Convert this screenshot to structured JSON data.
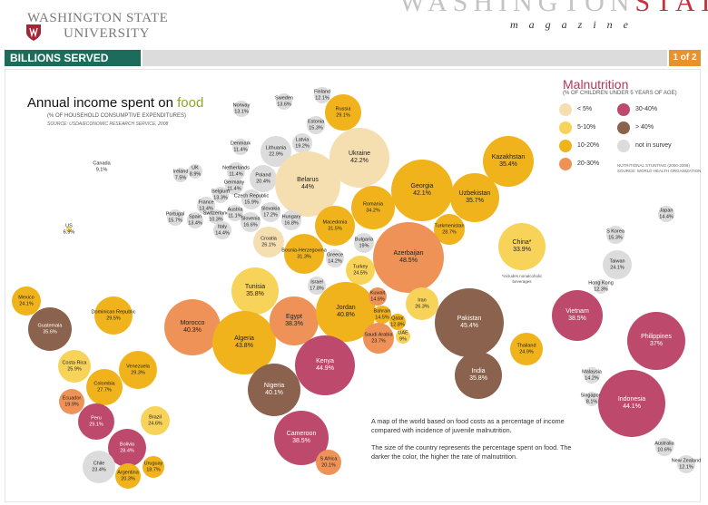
{
  "header": {
    "logo_line1": "WASHINGTON STATE",
    "logo_line2": "UNIVERSITY",
    "magazine_title_a": "WASHINGTON",
    "magazine_title_b": "STATE",
    "magazine_sub": "magazine",
    "section_title": "BILLIONS SERVED",
    "page_indicator": "1 of 2"
  },
  "chart_title": {
    "pre": "Annual income spent on ",
    "accent": "food",
    "subtitle": "(% OF HOUSEHOLD CONSUMPTIVE EXPENDITURES)",
    "source": "SOURCE: USDA/ECONOMIC RESEARCH SERVICE, 2008"
  },
  "legend": {
    "title": "Malnutrition",
    "subtitle": "(% OF CHILDREN UNDER 5 YEARS OF AGE)",
    "items": [
      {
        "label": "< 5%",
        "color": "#f5dfb0"
      },
      {
        "label": "5-10%",
        "color": "#f8d35a"
      },
      {
        "label": "10-20%",
        "color": "#f0b31c"
      },
      {
        "label": "20-30%",
        "color": "#ef9257"
      },
      {
        "label": "30-40%",
        "color": "#bd4a6c"
      },
      {
        "label": "> 40%",
        "color": "#8b624d"
      },
      {
        "label": "not in survey",
        "color": "#dcdcdc"
      }
    ],
    "note_line1": "NUTRITIONAL STUNTING (2000-2008)",
    "note_line2": "SOURCE: WORLD HEALTH ORGANIZATION"
  },
  "caption": {
    "p1": "A map of the world based on food costs as a percentage of income compared with incidence of juvenile malnutrition.",
    "p2": "The size of the country represents the percentage spent on food. The darker the color, the higher the rate of malnutrition."
  },
  "china_note": "*includes nonalcoholic beverages",
  "countries": [
    {
      "name": "Canada",
      "value": "9.1%",
      "color": "none"
    },
    {
      "name": "US",
      "value": "6.9%",
      "color": "#f8d35a"
    },
    {
      "name": "Mexico",
      "value": "24.1%",
      "color": "#f0b31c"
    },
    {
      "name": "Guatemala",
      "value": "35.6%",
      "color": "#8b624d"
    },
    {
      "name": "Dominican Republic",
      "value": "29.5%",
      "color": "#f0b31c"
    },
    {
      "name": "Costa Rica",
      "value": "25.9%",
      "color": "#f8d35a"
    },
    {
      "name": "Venezuela",
      "value": "29.3%",
      "color": "#f0b31c"
    },
    {
      "name": "Colombia",
      "value": "27.7%",
      "color": "#f0b31c"
    },
    {
      "name": "Ecuador",
      "value": "19.9%",
      "color": "#ef9257"
    },
    {
      "name": "Peru",
      "value": "29.1%",
      "color": "#bd4a6c"
    },
    {
      "name": "Brazil",
      "value": "24.6%",
      "color": "#f8d35a"
    },
    {
      "name": "Bolivia",
      "value": "28.4%",
      "color": "#bd4a6c"
    },
    {
      "name": "Chile",
      "value": "23.4%",
      "color": "#dcdcdc"
    },
    {
      "name": "Argentina",
      "value": "20.3%",
      "color": "#f0b31c"
    },
    {
      "name": "Uruguay",
      "value": "18.7%",
      "color": "#f0b31c"
    },
    {
      "name": "Norway",
      "value": "13.1%",
      "color": "#dcdcdc"
    },
    {
      "name": "Sweden",
      "value": "13.6%",
      "color": "#dcdcdc"
    },
    {
      "name": "Finland",
      "value": "12.1%",
      "color": "#dcdcdc"
    },
    {
      "name": "Russia",
      "value": "29.1%",
      "color": "#f0b31c"
    },
    {
      "name": "Estonia",
      "value": "15.3%",
      "color": "#dcdcdc"
    },
    {
      "name": "Latvia",
      "value": "19.2%",
      "color": "#dcdcdc"
    },
    {
      "name": "Denmark",
      "value": "11.4%",
      "color": "#dcdcdc"
    },
    {
      "name": "Lithuania",
      "value": "22.9%",
      "color": "#dcdcdc"
    },
    {
      "name": "Ireland",
      "value": "7.5%",
      "color": "#dcdcdc"
    },
    {
      "name": "UK",
      "value": "8.9%",
      "color": "#dcdcdc"
    },
    {
      "name": "Netherlands",
      "value": "11.4%",
      "color": "#dcdcdc"
    },
    {
      "name": "Germany",
      "value": "11.4%",
      "color": "#dcdcdc"
    },
    {
      "name": "Poland",
      "value": "20.4%",
      "color": "#dcdcdc"
    },
    {
      "name": "Belarus",
      "value": "44%",
      "color": "#f5dfb0"
    },
    {
      "name": "Ukraine",
      "value": "42.2%",
      "color": "#f5dfb0"
    },
    {
      "name": "Belgium",
      "value": "13.3%",
      "color": "#dcdcdc"
    },
    {
      "name": "Czech Republic",
      "value": "15.9%",
      "color": "#dcdcdc"
    },
    {
      "name": "Slovakia",
      "value": "17.2%",
      "color": "#dcdcdc"
    },
    {
      "name": "France",
      "value": "13.4%",
      "color": "#dcdcdc"
    },
    {
      "name": "Switzerland",
      "value": "10.3%",
      "color": "#dcdcdc"
    },
    {
      "name": "Austria",
      "value": "11.1%",
      "color": "#dcdcdc"
    },
    {
      "name": "Slovenia",
      "value": "16.6%",
      "color": "#dcdcdc"
    },
    {
      "name": "Hungary",
      "value": "16.8%",
      "color": "#dcdcdc"
    },
    {
      "name": "Portugal",
      "value": "15.7%",
      "color": "#dcdcdc"
    },
    {
      "name": "Spain",
      "value": "13.4%",
      "color": "#dcdcdc"
    },
    {
      "name": "Italy",
      "value": "14.4%",
      "color": "#dcdcdc"
    },
    {
      "name": "Croatia",
      "value": "26.1%",
      "color": "#f5dfb0"
    },
    {
      "name": "Bosnia-Herzegovina",
      "value": "31.3%",
      "color": "#f0b31c"
    },
    {
      "name": "Macedonia",
      "value": "31.5%",
      "color": "#f0b31c"
    },
    {
      "name": "Romania",
      "value": "34.2%",
      "color": "#f0b31c"
    },
    {
      "name": "Bulgaria",
      "value": "19%",
      "color": "#dcdcdc"
    },
    {
      "name": "Greece",
      "value": "14.2%",
      "color": "#dcdcdc"
    },
    {
      "name": "Turkey",
      "value": "24.5%",
      "color": "#f8d35a"
    },
    {
      "name": "Georgia",
      "value": "42.1%",
      "color": "#f0b31c"
    },
    {
      "name": "Kazakhstan",
      "value": "35.4%",
      "color": "#f0b31c"
    },
    {
      "name": "Uzbekistan",
      "value": "35.7%",
      "color": "#f0b31c"
    },
    {
      "name": "Turkmenistan",
      "value": "28.7%",
      "color": "#f0b31c"
    },
    {
      "name": "Azerbaijan",
      "value": "48.5%",
      "color": "#ef9257"
    },
    {
      "name": "Tunisia",
      "value": "35.8%",
      "color": "#f8d35a"
    },
    {
      "name": "Israel",
      "value": "17.8%",
      "color": "#dcdcdc"
    },
    {
      "name": "Morocco",
      "value": "40.3%",
      "color": "#ef9257"
    },
    {
      "name": "Algeria",
      "value": "43.8%",
      "color": "#f0b31c"
    },
    {
      "name": "Egypt",
      "value": "38.3%",
      "color": "#ef9257"
    },
    {
      "name": "Jordan",
      "value": "40.8%",
      "color": "#f0b31c"
    },
    {
      "name": "Kuwait",
      "value": "14.6%",
      "color": "#ef9257"
    },
    {
      "name": "Iran",
      "value": "26.3%",
      "color": "#f8d35a"
    },
    {
      "name": "Bahrain",
      "value": "14.5%",
      "color": "#f0b31c"
    },
    {
      "name": "Qatar",
      "value": "12.8%",
      "color": "#f0b31c"
    },
    {
      "name": "Saudi Arabia",
      "value": "23.7%",
      "color": "#ef9257"
    },
    {
      "name": "UAE",
      "value": "9%",
      "color": "#f8d35a"
    },
    {
      "name": "Pakistan",
      "value": "45.4%",
      "color": "#8b624d"
    },
    {
      "name": "India",
      "value": "35.8%",
      "color": "#8b624d"
    },
    {
      "name": "Nigeria",
      "value": "40.1%",
      "color": "#8b624d"
    },
    {
      "name": "Kenya",
      "value": "44.9%",
      "color": "#bd4a6c"
    },
    {
      "name": "Cameroon",
      "value": "38.5%",
      "color": "#bd4a6c"
    },
    {
      "name": "S Africa",
      "value": "20.1%",
      "color": "#ef9257"
    },
    {
      "name": "China*",
      "value": "33.9%",
      "color": "#f8d35a"
    },
    {
      "name": "Japan",
      "value": "14.4%",
      "color": "#dcdcdc"
    },
    {
      "name": "S Korea",
      "value": "15.3%",
      "color": "#dcdcdc"
    },
    {
      "name": "Taiwan",
      "value": "24.1%",
      "color": "#dcdcdc"
    },
    {
      "name": "Hong Kong",
      "value": "12.3%",
      "color": "#dcdcdc"
    },
    {
      "name": "Vietnam",
      "value": "38.5%",
      "color": "#bd4a6c"
    },
    {
      "name": "Thailand",
      "value": "24.9%",
      "color": "#f0b31c"
    },
    {
      "name": "Philippines",
      "value": "37%",
      "color": "#bd4a6c"
    },
    {
      "name": "Malaysia",
      "value": "14.2%",
      "color": "#dcdcdc"
    },
    {
      "name": "Singapore",
      "value": "8.1%",
      "color": "#dcdcdc"
    },
    {
      "name": "Indonesia",
      "value": "44.1%",
      "color": "#bd4a6c"
    },
    {
      "name": "Australia",
      "value": "10.6%",
      "color": "#dcdcdc"
    },
    {
      "name": "New Zealand",
      "value": "12.1%",
      "color": "#dcdcdc"
    }
  ]
}
